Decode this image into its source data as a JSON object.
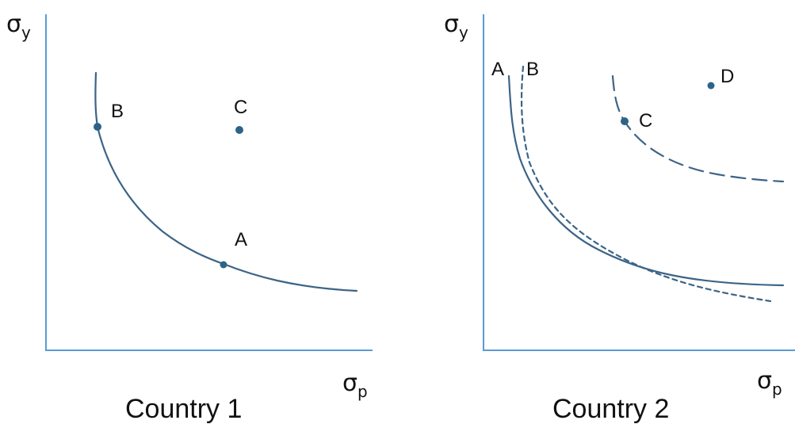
{
  "panels": [
    {
      "caption": "Country 1",
      "y_axis_symbol": "σ",
      "y_axis_sub": "y",
      "x_axis_symbol": "σ",
      "x_axis_sub": "p",
      "points": [
        {
          "label": "B"
        },
        {
          "label": "C"
        },
        {
          "label": "A"
        }
      ]
    },
    {
      "caption": "Country 2",
      "y_axis_symbol": "σ",
      "y_axis_sub": "y",
      "x_axis_symbol": "σ",
      "x_axis_sub": "p",
      "curve_labels": [
        "A",
        "B"
      ],
      "points": [
        {
          "label": "C"
        },
        {
          "label": "D"
        }
      ]
    }
  ],
  "colors": {
    "axis": "#5b9bd5",
    "curve": "#3c6486",
    "dot": "#2e6389"
  }
}
